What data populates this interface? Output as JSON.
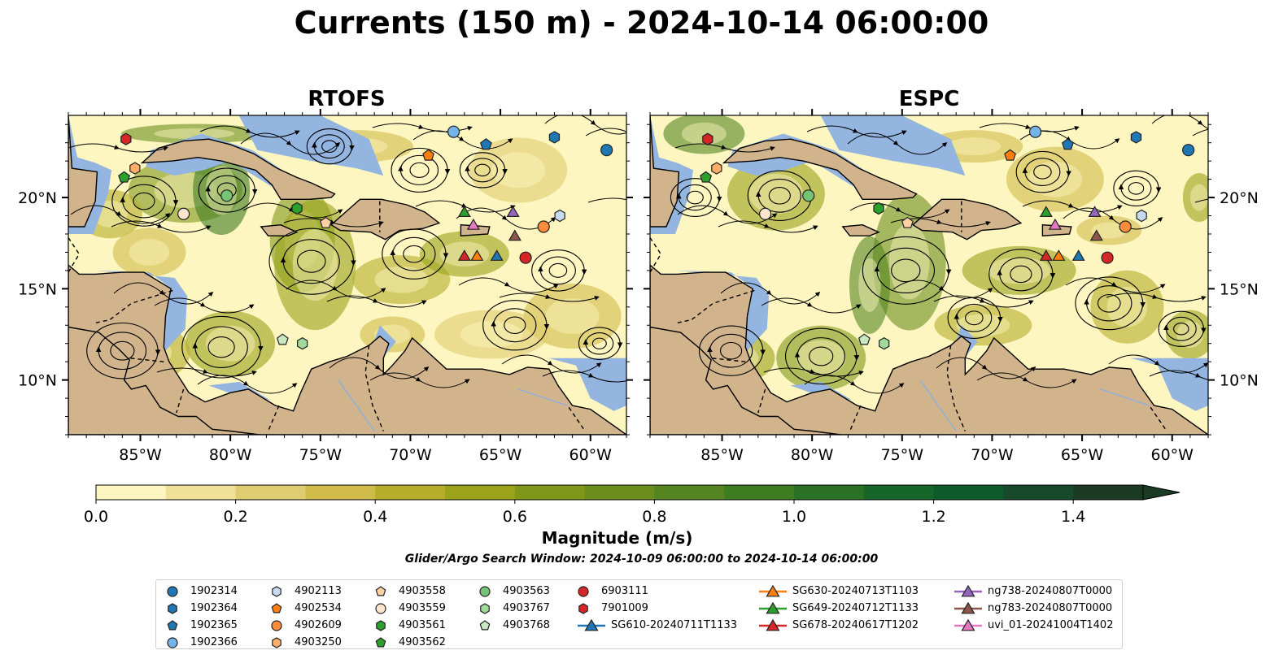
{
  "title": "Currents (150 m) - 2024-10-14 06:00:00",
  "panels": [
    {
      "title": "RTOFS"
    },
    {
      "title": "ESPC"
    }
  ],
  "axes": {
    "lon_ticks": [
      "85°W",
      "80°W",
      "75°W",
      "70°W",
      "65°W",
      "60°W"
    ],
    "lat_ticks": [
      "20°N",
      "15°N",
      "10°N"
    ],
    "lon_range": [
      -89,
      -58
    ],
    "lat_range": [
      7,
      24.5
    ]
  },
  "colors": {
    "land": "#d2b48c",
    "shelf_water": "#93b5e0"
  },
  "colorbar": {
    "label": "Magnitude (m/s)",
    "ticks": [
      "0.0",
      "0.2",
      "0.4",
      "0.6",
      "0.8",
      "1.0",
      "1.2",
      "1.4"
    ],
    "min": 0.0,
    "max": 1.5,
    "extend": "max",
    "colors": [
      "#fdf6c0",
      "#f0e199",
      "#e0cc70",
      "#d0bb4a",
      "#b6ad2a",
      "#9aa31a",
      "#80971a",
      "#6a8d1e",
      "#548520",
      "#3e7c22",
      "#2a7025",
      "#156628",
      "#0e5a2a",
      "#17492a",
      "#1a3a24"
    ]
  },
  "search_window": "Glider/Argo Search Window: 2024-10-09 06:00:00 to 2024-10-14 06:00:00",
  "chart_data": {
    "type": "scatter",
    "title": "Currents (150 m) - 2024-10-14 06:00:00",
    "panels": [
      "RTOFS",
      "ESPC"
    ],
    "field": "current magnitude (m/s) with streamlines",
    "xlim": [
      -89,
      -58
    ],
    "ylim": [
      7,
      24.5
    ],
    "legend_position": "bottom",
    "series": [
      {
        "name": "1902314",
        "marker": "circle",
        "color": "#1f77b4",
        "lon": -59.1,
        "lat": 22.6
      },
      {
        "name": "1902364",
        "marker": "hexagon",
        "color": "#1f77b4",
        "lon": -62.0,
        "lat": 23.3
      },
      {
        "name": "1902365",
        "marker": "pentagon",
        "color": "#1f77b4",
        "lon": -65.8,
        "lat": 22.9
      },
      {
        "name": "1902366",
        "marker": "circle",
        "color": "#74b4e6",
        "lon": -67.6,
        "lat": 23.6
      },
      {
        "name": "4902113",
        "marker": "hexagon",
        "color": "#c6dbef",
        "lon": -61.7,
        "lat": 19.0
      },
      {
        "name": "4902534",
        "marker": "pentagon",
        "color": "#ff7f0e",
        "lon": -69.0,
        "lat": 22.3
      },
      {
        "name": "4902609",
        "marker": "circle",
        "color": "#fd8d3c",
        "lon": -62.6,
        "lat": 18.4
      },
      {
        "name": "4903250",
        "marker": "hexagon",
        "color": "#fdae6b",
        "lon": -85.3,
        "lat": 21.6
      },
      {
        "name": "4903558",
        "marker": "pentagon",
        "color": "#fdd0a2",
        "lon": -74.7,
        "lat": 18.6
      },
      {
        "name": "4903559",
        "marker": "circle",
        "color": "#fee6ce",
        "lon": -82.6,
        "lat": 19.1
      },
      {
        "name": "4903561",
        "marker": "hexagon",
        "color": "#2ca02c",
        "lon": -76.3,
        "lat": 19.4
      },
      {
        "name": "4903562",
        "marker": "pentagon",
        "color": "#2ca02c",
        "lon": -85.9,
        "lat": 21.1
      },
      {
        "name": "4903563",
        "marker": "circle",
        "color": "#74c476",
        "lon": -80.2,
        "lat": 20.1
      },
      {
        "name": "4903767",
        "marker": "hexagon",
        "color": "#a1d99b",
        "lon": -76.0,
        "lat": 12.0
      },
      {
        "name": "4903768",
        "marker": "pentagon",
        "color": "#c7e9c0",
        "lon": -77.1,
        "lat": 12.2
      },
      {
        "name": "6903111",
        "marker": "circle",
        "color": "#d62728",
        "lon": -63.6,
        "lat": 16.7
      },
      {
        "name": "7901009",
        "marker": "hexagon",
        "color": "#d62728",
        "lon": -85.8,
        "lat": 23.2
      },
      {
        "name": "SG610-20240711T1133",
        "marker": "triangle",
        "line": true,
        "color": "#1f77b4",
        "lon": -65.2,
        "lat": 16.8
      },
      {
        "name": "SG630-20240713T1103",
        "marker": "triangle",
        "line": true,
        "color": "#ff7f0e",
        "lon": -66.3,
        "lat": 16.8
      },
      {
        "name": "SG649-20240712T1133",
        "marker": "triangle",
        "line": true,
        "color": "#2ca02c",
        "lon": -67.0,
        "lat": 19.2
      },
      {
        "name": "SG678-20240617T1202",
        "marker": "triangle",
        "line": true,
        "color": "#d62728",
        "lon": -67.0,
        "lat": 16.8
      },
      {
        "name": "ng738-20240807T0000",
        "marker": "triangle",
        "line": true,
        "color": "#9467bd",
        "lon": -64.3,
        "lat": 19.2
      },
      {
        "name": "ng783-20240807T0000",
        "marker": "triangle",
        "line": true,
        "color": "#8c564b",
        "lon": -64.2,
        "lat": 17.9
      },
      {
        "name": "uvi_01-20241004T1402",
        "marker": "triangle",
        "line": true,
        "color": "#e377c2",
        "lon": -66.5,
        "lat": 18.5
      }
    ]
  }
}
